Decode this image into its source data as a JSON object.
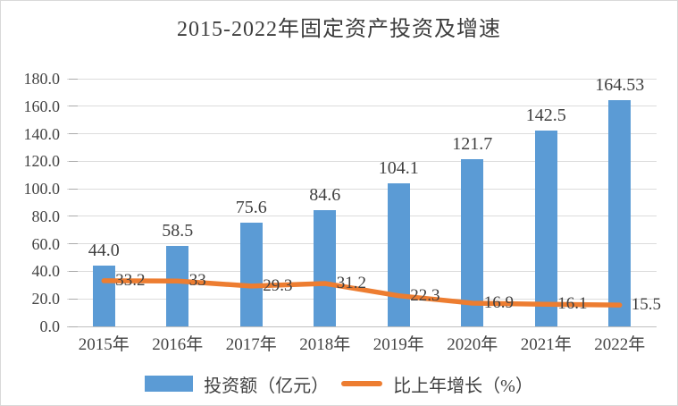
{
  "chart": {
    "title": "2015-2022年固定资产投资及增速"
  },
  "chart_data": {
    "type": "combo",
    "title": "2015-2022年固定资产投资及增速",
    "xlabel": "",
    "ylabel": "",
    "categories": [
      "2015年",
      "2016年",
      "2017年",
      "2018年",
      "2019年",
      "2020年",
      "2021年",
      "2022年"
    ],
    "series": [
      {
        "name": "投资额（亿元）",
        "type": "bar",
        "values": [
          44.0,
          58.5,
          75.6,
          84.6,
          104.1,
          121.7,
          142.5,
          164.53
        ],
        "labels": [
          "44.0",
          "58.5",
          "75.6",
          "84.6",
          "104.1",
          "121.7",
          "142.5",
          "164.53"
        ],
        "color": "#5B9BD5"
      },
      {
        "name": "比上年增长（%）",
        "type": "line",
        "values": [
          33.2,
          33,
          29.3,
          31.2,
          22.3,
          16.9,
          16.1,
          15.5
        ],
        "labels": [
          "33.2",
          "33",
          "29.3",
          "31.2",
          "22.3",
          "16.9",
          "16.1",
          "15.5"
        ],
        "color": "#ED7D31"
      }
    ],
    "ylim": [
      0,
      180
    ],
    "ytick_step": 20,
    "ytick_labels": [
      "0.0",
      "20.0",
      "40.0",
      "60.0",
      "80.0",
      "100.0",
      "120.0",
      "140.0",
      "160.0",
      "180.0"
    ],
    "grid": true,
    "legend_position": "bottom",
    "colors": {
      "bar": "#5B9BD5",
      "line": "#ED7D31",
      "gridline": "#dcdcdc",
      "axis_line": "#c0c0c0",
      "text": "#404040"
    }
  }
}
